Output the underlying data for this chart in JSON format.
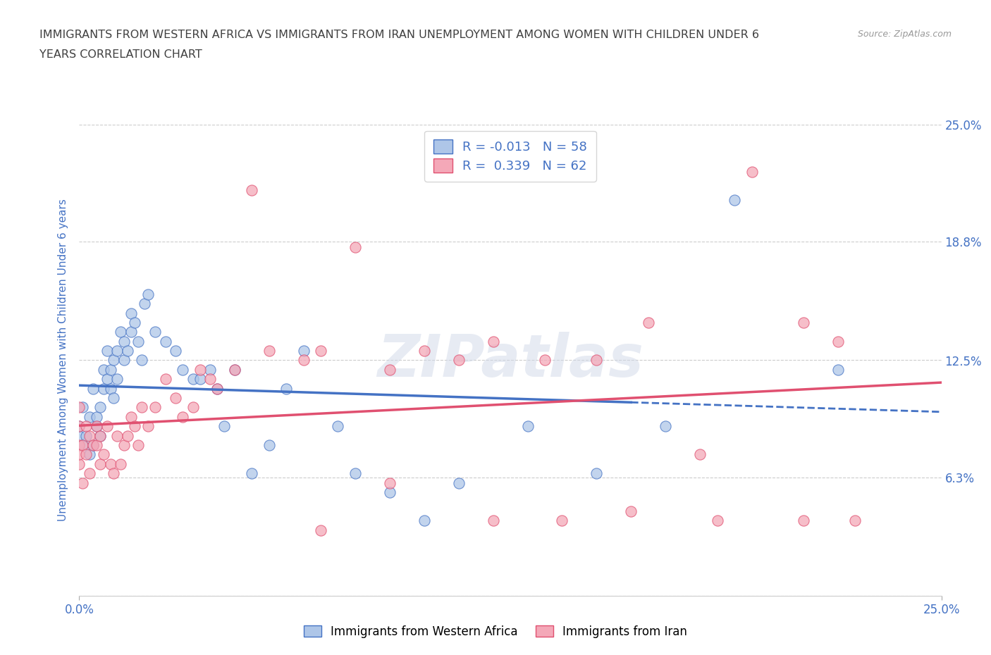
{
  "title_line1": "IMMIGRANTS FROM WESTERN AFRICA VS IMMIGRANTS FROM IRAN UNEMPLOYMENT AMONG WOMEN WITH CHILDREN UNDER 6",
  "title_line2": "YEARS CORRELATION CHART",
  "source": "Source: ZipAtlas.com",
  "ylabel": "Unemployment Among Women with Children Under 6 years",
  "xlim": [
    0,
    0.25
  ],
  "ylim": [
    0,
    0.25
  ],
  "ytick_values": [
    0.0,
    0.063,
    0.125,
    0.188,
    0.25
  ],
  "ytick_labels": [
    "",
    "6.3%",
    "12.5%",
    "18.8%",
    "25.0%"
  ],
  "series1_color": "#aec6e8",
  "series2_color": "#f4a8b8",
  "series1_edge_color": "#4472c4",
  "series2_edge_color": "#e05070",
  "series1_line_color": "#4472c4",
  "series2_line_color": "#e05070",
  "series1_label": "Immigrants from Western Africa",
  "series2_label": "Immigrants from Iran",
  "R1": -0.013,
  "N1": 58,
  "R2": 0.339,
  "N2": 62,
  "watermark": "ZIPatlas",
  "background_color": "#ffffff",
  "grid_color": "#cccccc",
  "title_color": "#404040",
  "axis_label_color": "#4472c4",
  "legend_R_color": "#4472c4",
  "series1_x": [
    0.0,
    0.0,
    0.001,
    0.001,
    0.002,
    0.003,
    0.003,
    0.004,
    0.004,
    0.005,
    0.005,
    0.006,
    0.006,
    0.007,
    0.007,
    0.008,
    0.008,
    0.009,
    0.009,
    0.01,
    0.01,
    0.011,
    0.011,
    0.012,
    0.013,
    0.013,
    0.014,
    0.015,
    0.015,
    0.016,
    0.017,
    0.018,
    0.019,
    0.02,
    0.022,
    0.025,
    0.028,
    0.03,
    0.033,
    0.035,
    0.038,
    0.04,
    0.042,
    0.045,
    0.05,
    0.055,
    0.06,
    0.065,
    0.075,
    0.08,
    0.09,
    0.1,
    0.11,
    0.13,
    0.15,
    0.17,
    0.19,
    0.22
  ],
  "series1_y": [
    0.085,
    0.09,
    0.08,
    0.1,
    0.085,
    0.075,
    0.095,
    0.08,
    0.11,
    0.09,
    0.095,
    0.085,
    0.1,
    0.11,
    0.12,
    0.13,
    0.115,
    0.12,
    0.11,
    0.105,
    0.125,
    0.13,
    0.115,
    0.14,
    0.135,
    0.125,
    0.13,
    0.14,
    0.15,
    0.145,
    0.135,
    0.125,
    0.155,
    0.16,
    0.14,
    0.135,
    0.13,
    0.12,
    0.115,
    0.115,
    0.12,
    0.11,
    0.09,
    0.12,
    0.065,
    0.08,
    0.11,
    0.13,
    0.09,
    0.065,
    0.055,
    0.04,
    0.06,
    0.09,
    0.065,
    0.09,
    0.21,
    0.12
  ],
  "series2_x": [
    0.0,
    0.0,
    0.0,
    0.0,
    0.0,
    0.001,
    0.001,
    0.002,
    0.002,
    0.003,
    0.003,
    0.004,
    0.005,
    0.005,
    0.006,
    0.006,
    0.007,
    0.008,
    0.009,
    0.01,
    0.011,
    0.012,
    0.013,
    0.014,
    0.015,
    0.016,
    0.017,
    0.018,
    0.02,
    0.022,
    0.025,
    0.028,
    0.03,
    0.033,
    0.035,
    0.038,
    0.04,
    0.045,
    0.05,
    0.055,
    0.065,
    0.07,
    0.08,
    0.09,
    0.1,
    0.11,
    0.12,
    0.135,
    0.15,
    0.165,
    0.18,
    0.195,
    0.21,
    0.22,
    0.225,
    0.21,
    0.185,
    0.16,
    0.14,
    0.12,
    0.09,
    0.07
  ],
  "series2_y": [
    0.07,
    0.08,
    0.075,
    0.09,
    0.1,
    0.06,
    0.08,
    0.075,
    0.09,
    0.065,
    0.085,
    0.08,
    0.08,
    0.09,
    0.07,
    0.085,
    0.075,
    0.09,
    0.07,
    0.065,
    0.085,
    0.07,
    0.08,
    0.085,
    0.095,
    0.09,
    0.08,
    0.1,
    0.09,
    0.1,
    0.115,
    0.105,
    0.095,
    0.1,
    0.12,
    0.115,
    0.11,
    0.12,
    0.215,
    0.13,
    0.125,
    0.13,
    0.185,
    0.12,
    0.13,
    0.125,
    0.135,
    0.125,
    0.125,
    0.145,
    0.075,
    0.225,
    0.145,
    0.135,
    0.04,
    0.04,
    0.04,
    0.045,
    0.04,
    0.04,
    0.06,
    0.035
  ]
}
